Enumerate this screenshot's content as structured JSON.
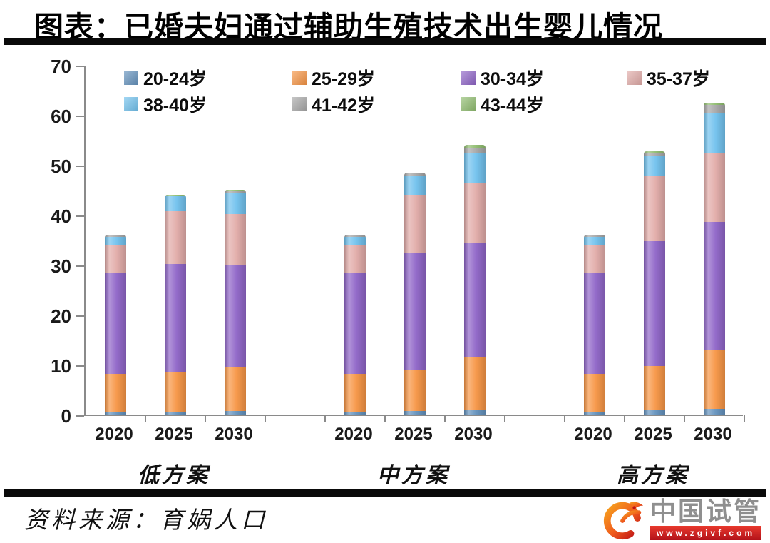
{
  "title": "图表：已婚夫妇通过辅助生殖技术出生婴儿情况",
  "source": "资料来源：育娲人口",
  "logo": {
    "name": "中国试管",
    "url": "www.zgivf.com",
    "icon": "phoenix-circle",
    "banner_color": "#c8141c"
  },
  "axis_color": "#8a8a8a",
  "chart_data": {
    "type": "bar",
    "stacked": true,
    "grid": false,
    "legend_position": "top-inside",
    "ylim": [
      0,
      70
    ],
    "yticks": [
      0,
      10,
      20,
      30,
      40,
      50,
      60,
      70
    ],
    "groups": [
      "低方案",
      "中方案",
      "高方案"
    ],
    "categories": [
      "2020",
      "2025",
      "2030",
      "2020",
      "2025",
      "2030",
      "2020",
      "2025",
      "2030"
    ],
    "series": [
      {
        "name": "20-24岁",
        "color": "#6593BE",
        "values": [
          0.5,
          0.5,
          0.7,
          0.5,
          0.7,
          1.0,
          0.5,
          0.8,
          1.2
        ]
      },
      {
        "name": "25-29岁",
        "color": "#F79646",
        "values": [
          7.6,
          7.9,
          8.8,
          7.6,
          8.3,
          10.5,
          7.6,
          8.9,
          11.8
        ]
      },
      {
        "name": "30-34岁",
        "color": "#9066C8",
        "values": [
          20.4,
          21.7,
          20.4,
          20.4,
          23.3,
          23.0,
          20.4,
          25.0,
          25.6
        ]
      },
      {
        "name": "35-37岁",
        "color": "#E2ACA9",
        "values": [
          5.3,
          10.6,
          10.3,
          5.3,
          11.7,
          12.0,
          5.3,
          13.0,
          13.8
        ]
      },
      {
        "name": "38-40岁",
        "color": "#72C2EE",
        "values": [
          1.8,
          3.0,
          4.3,
          1.8,
          3.8,
          6.0,
          1.8,
          4.1,
          7.9
        ]
      },
      {
        "name": "41-42岁",
        "color": "#A8A8A8",
        "values": [
          0.3,
          0.2,
          0.4,
          0.3,
          0.5,
          1.0,
          0.3,
          0.6,
          1.7
        ]
      },
      {
        "name": "43-44岁",
        "color": "#90BD70",
        "values": [
          0.1,
          0.1,
          0.1,
          0.1,
          0.2,
          0.5,
          0.1,
          0.3,
          0.5
        ]
      }
    ]
  }
}
